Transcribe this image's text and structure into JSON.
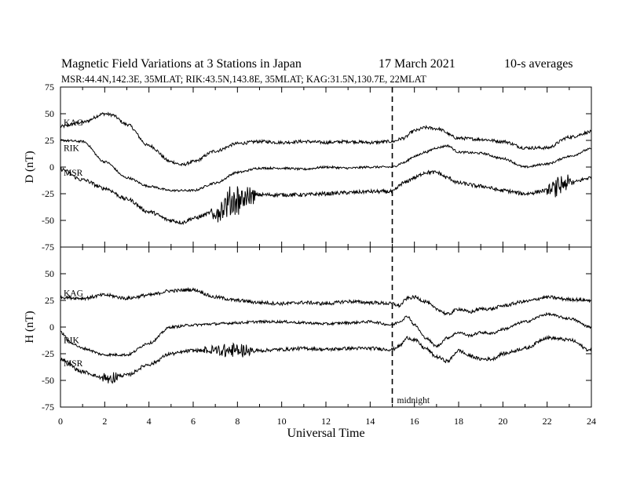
{
  "chart_data": {
    "type": "line",
    "title": "Magnetic Field Variations at 3 Stations in Japan",
    "date": "17 March   2021",
    "averaging": "10-s averages",
    "subtitle": "MSR:44.4N,142.3E, 35MLAT;  RIK:43.5N,143.8E, 35MLAT;  KAG:31.5N,130.7E, 22MLAT",
    "xlabel": "Universal Time",
    "xlim": [
      0,
      24
    ],
    "xticks": [
      0,
      2,
      4,
      6,
      8,
      10,
      12,
      14,
      16,
      18,
      20,
      22,
      24
    ],
    "marker": {
      "x": 15,
      "label": "midnight",
      "style": "dashed"
    },
    "panels": [
      {
        "ylabel": "D (nT)",
        "ylim": [
          -75,
          75
        ],
        "yticks": [
          75,
          50,
          25,
          0,
          -25,
          -50,
          -75
        ],
        "series": [
          {
            "name": "KAG",
            "x": [
              0,
              1,
              2,
              2.3,
              3,
              4,
              5,
              5.5,
              6,
              7,
              8,
              9,
              10,
              11,
              12,
              13,
              14,
              15,
              15.5,
              16,
              16.5,
              17,
              18,
              19,
              20,
              21,
              22,
              23,
              24
            ],
            "y": [
              38,
              42,
              50,
              49,
              40,
              20,
              5,
              2,
              5,
              15,
              22,
              24,
              23,
              24,
              23,
              24,
              23,
              24,
              27,
              34,
              37,
              36,
              27,
              26,
              24,
              18,
              18,
              28,
              33
            ],
            "noise": 1.5,
            "labelPos": [
              0,
              42
            ]
          },
          {
            "name": "RIK",
            "x": [
              0,
              1,
              2,
              3,
              4,
              5,
              6,
              7,
              8,
              9,
              10,
              11,
              12,
              13,
              14,
              15,
              15.5,
              16,
              16.5,
              17,
              17.5,
              18,
              19,
              20,
              21,
              22,
              23,
              24
            ],
            "y": [
              25,
              24,
              5,
              -10,
              -18,
              -22,
              -22,
              -15,
              -5,
              -1,
              -1,
              -2,
              0,
              -1,
              0,
              0,
              4,
              10,
              14,
              18,
              20,
              14,
              13,
              8,
              0,
              3,
              10,
              17
            ],
            "noise": 1.0,
            "labelPos": [
              0,
              18
            ]
          },
          {
            "name": "MSR",
            "x": [
              0,
              1,
              2,
              3,
              4,
              5,
              5.5,
              6,
              7,
              8,
              9,
              10,
              11,
              12,
              13,
              14,
              15,
              15.5,
              16,
              16.5,
              17,
              17.5,
              18,
              19,
              20,
              21,
              22,
              23,
              24
            ],
            "y": [
              -2,
              -12,
              -20,
              -30,
              -42,
              -50,
              -52,
              -48,
              -42,
              -30,
              -26,
              -26,
              -26,
              -25,
              -24,
              -23,
              -23,
              -15,
              -10,
              -5,
              -5,
              -10,
              -15,
              -18,
              -22,
              -25,
              -22,
              -15,
              -10
            ],
            "noise": 1.8,
            "labelPos": [
              0,
              -5
            ],
            "bursts": [
              {
                "from": 6.8,
                "to": 8.8,
                "amp": 8
              },
              {
                "from": 22.0,
                "to": 23.2,
                "amp": 5
              }
            ]
          }
        ]
      },
      {
        "ylabel": "H (nT)",
        "ylim": [
          -75,
          75
        ],
        "yticks": [
          75,
          50,
          25,
          0,
          -25,
          -50,
          -75
        ],
        "series": [
          {
            "name": "KAG",
            "x": [
              0,
              1,
              2,
              3,
              4,
              5,
              6,
              7,
              8,
              9,
              10,
              11,
              12,
              13,
              14,
              15,
              15.3,
              15.7,
              16,
              16.5,
              17,
              17.5,
              18,
              18.5,
              19,
              19.5,
              20,
              21,
              22,
              23,
              24
            ],
            "y": [
              28,
              27,
              30,
              27,
              30,
              34,
              35,
              28,
              25,
              23,
              22,
              23,
              22,
              24,
              23,
              22,
              20,
              27,
              28,
              24,
              17,
              12,
              17,
              14,
              17,
              17,
              20,
              24,
              28,
              26,
              25
            ],
            "noise": 1.6,
            "labelPos": [
              0,
              32
            ]
          },
          {
            "name": "RIK",
            "x": [
              0,
              0.5,
              1,
              2,
              3,
              4,
              5,
              6,
              7,
              8,
              9,
              10,
              11,
              12,
              13,
              14,
              15,
              15.3,
              15.7,
              16,
              16.5,
              17,
              17.5,
              18,
              18.5,
              19,
              19.5,
              20,
              21,
              22,
              23,
              24
            ],
            "y": [
              -5,
              -15,
              -20,
              -26,
              -26,
              -15,
              0,
              2,
              3,
              4,
              5,
              5,
              4,
              3,
              4,
              5,
              2,
              5,
              10,
              2,
              -10,
              -18,
              -10,
              -5,
              -8,
              -5,
              -6,
              -2,
              5,
              12,
              8,
              0
            ],
            "noise": 1.2,
            "labelPos": [
              0,
              -12
            ]
          },
          {
            "name": "MSR",
            "x": [
              0,
              1,
              2,
              3,
              4,
              5,
              6,
              7,
              8,
              9,
              10,
              11,
              12,
              13,
              14,
              15,
              15.3,
              15.7,
              16,
              16.5,
              17,
              17.5,
              18,
              18.5,
              19,
              19.5,
              20,
              21,
              22,
              23,
              24
            ],
            "y": [
              -30,
              -42,
              -48,
              -45,
              -35,
              -25,
              -22,
              -22,
              -22,
              -22,
              -21,
              -20,
              -21,
              -20,
              -20,
              -21,
              -18,
              -10,
              -12,
              -20,
              -28,
              -32,
              -22,
              -27,
              -30,
              -30,
              -25,
              -20,
              -10,
              -12,
              -22
            ],
            "noise": 1.6,
            "labelPos": [
              0,
              -34
            ],
            "bursts": [
              {
                "from": 6.5,
                "to": 8.8,
                "amp": 4
              },
              {
                "from": 1.8,
                "to": 2.6,
                "amp": 4
              }
            ]
          }
        ]
      }
    ]
  }
}
